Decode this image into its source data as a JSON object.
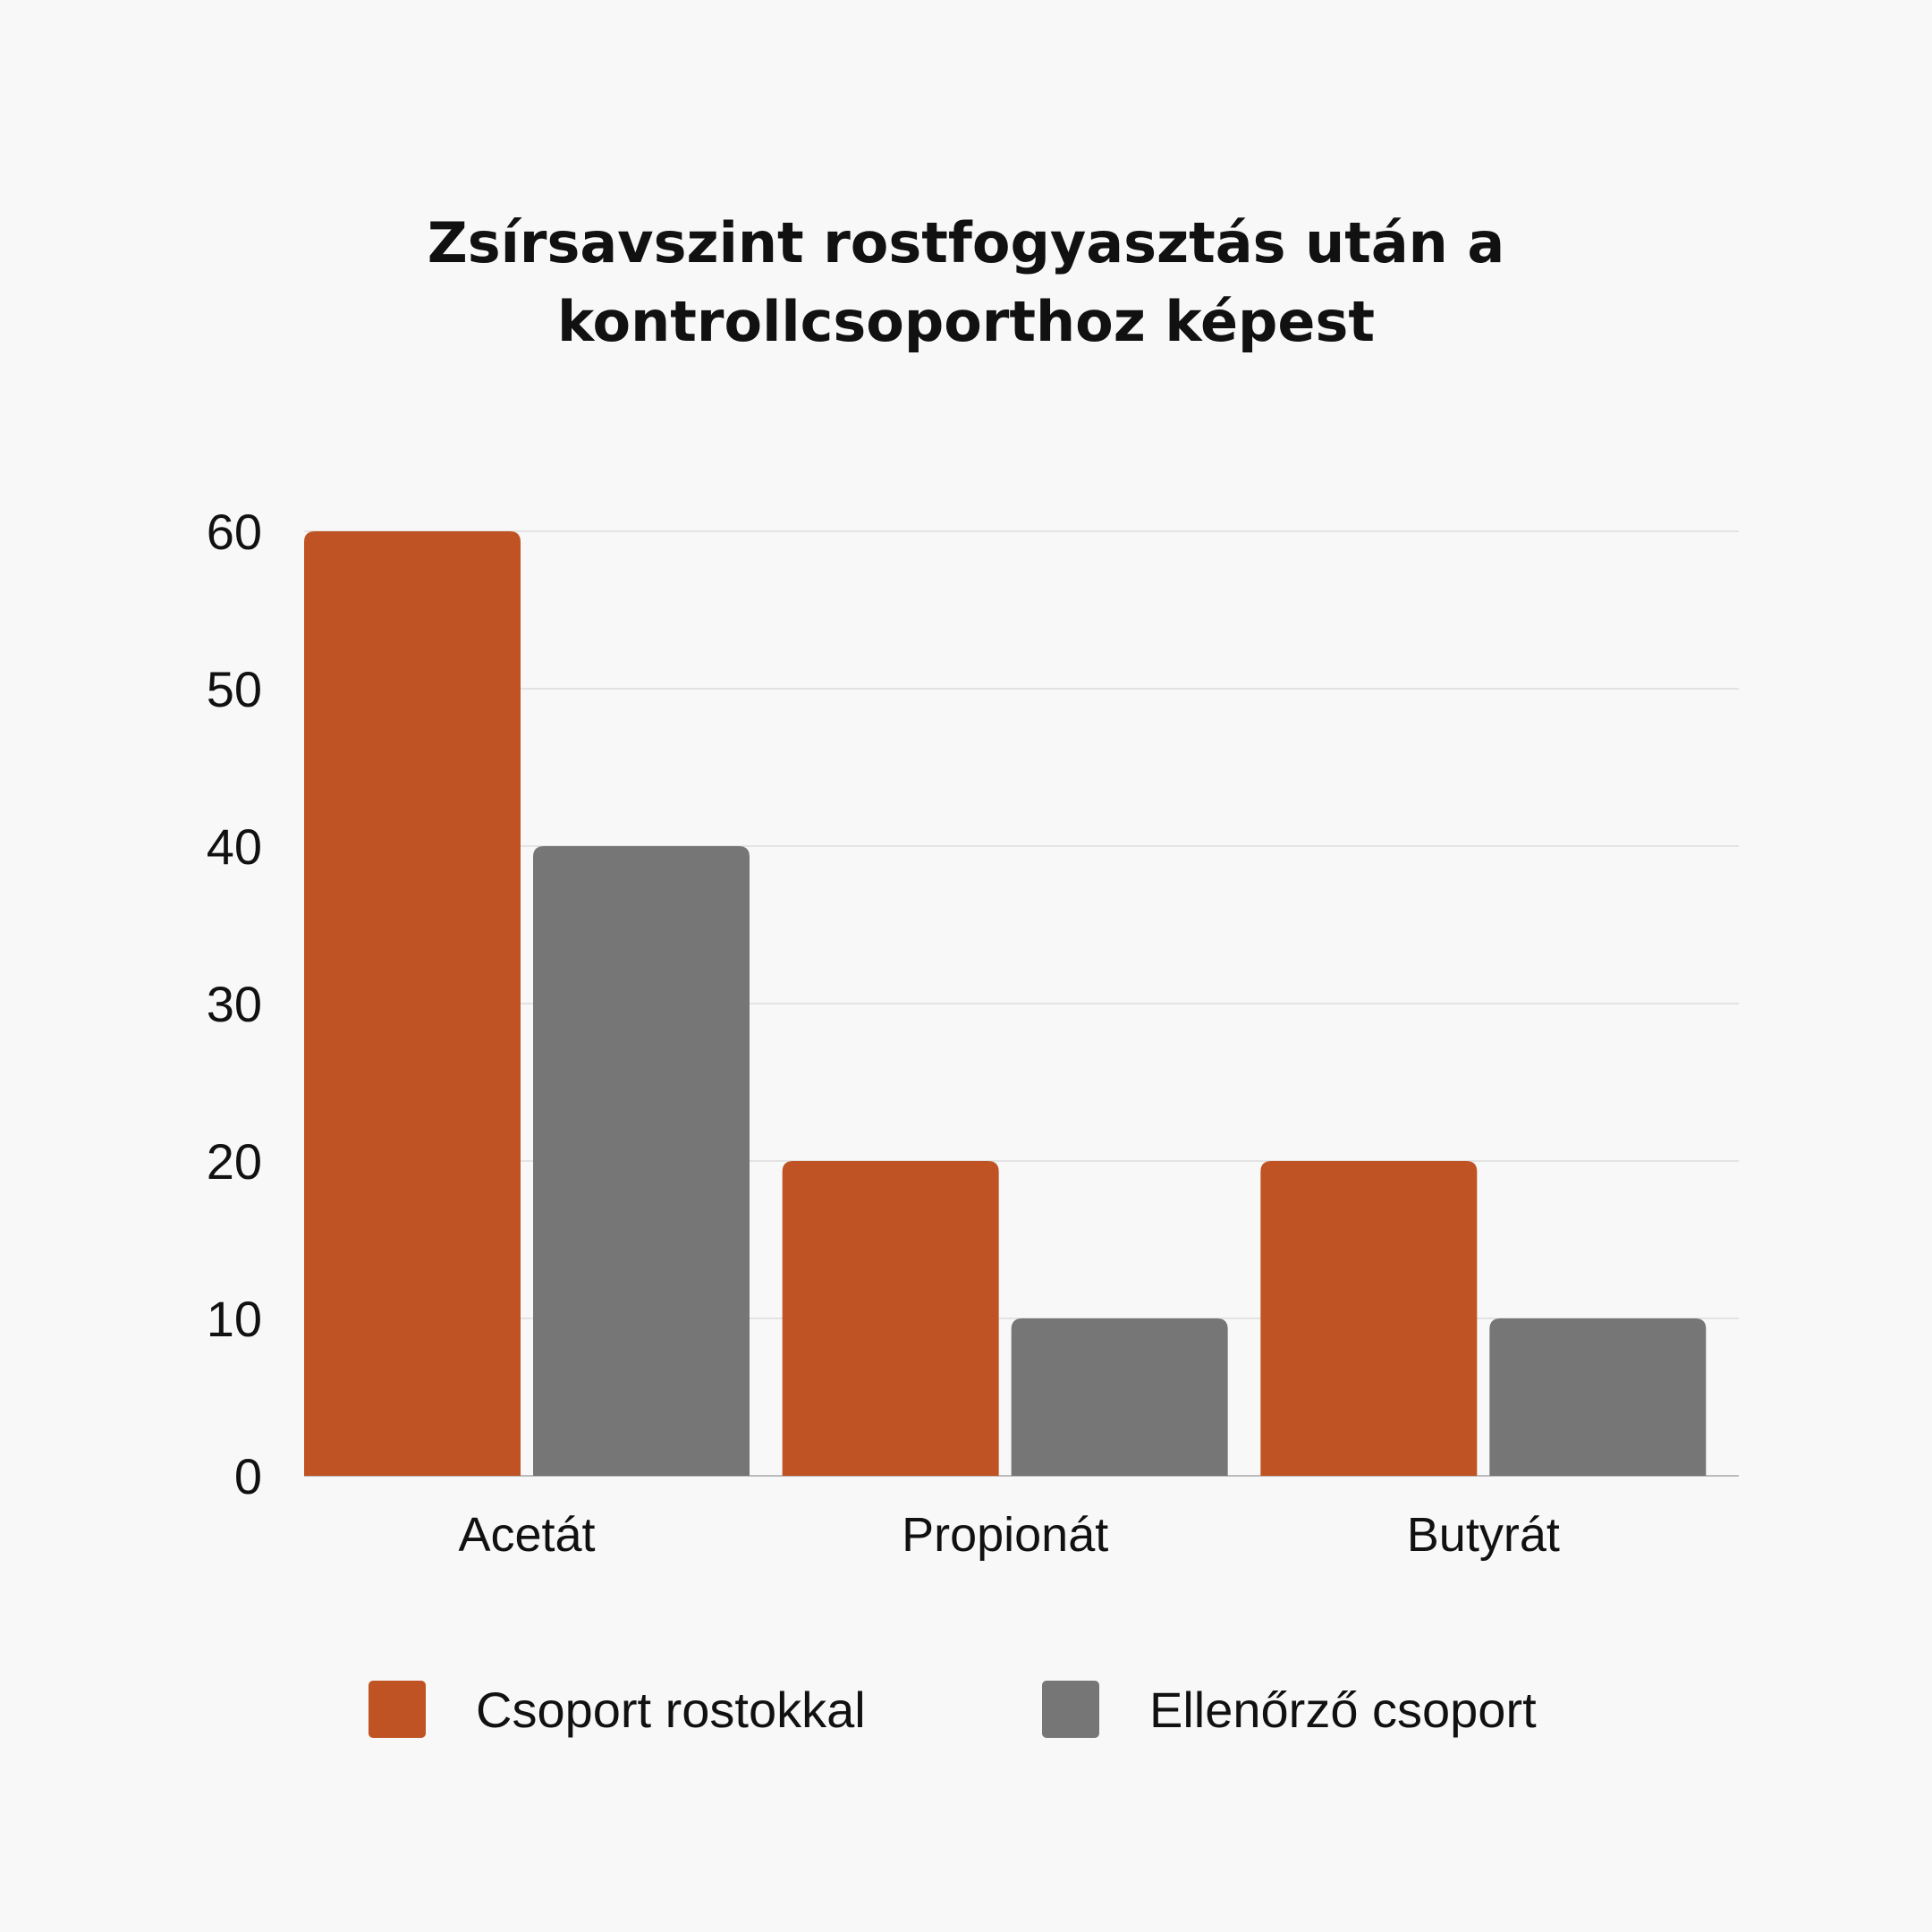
{
  "chart_data": {
    "type": "bar",
    "title_lines": [
      "Zsírsavszint rostfogyasztás után a",
      "kontrollcsoporthoz képest"
    ],
    "categories": [
      "Acetát",
      "Propionát",
      "Butyrát"
    ],
    "series": [
      {
        "name": "Csoport rostokkal",
        "values": [
          60,
          20,
          20
        ],
        "color": "#c05323"
      },
      {
        "name": "Ellenőrző csoport",
        "values": [
          40,
          10,
          10
        ],
        "color": "#767676"
      }
    ],
    "yticks": [
      0,
      10,
      20,
      30,
      40,
      50,
      60
    ],
    "ylim": [
      0,
      60
    ],
    "grid": true,
    "legend_position": "bottom"
  }
}
